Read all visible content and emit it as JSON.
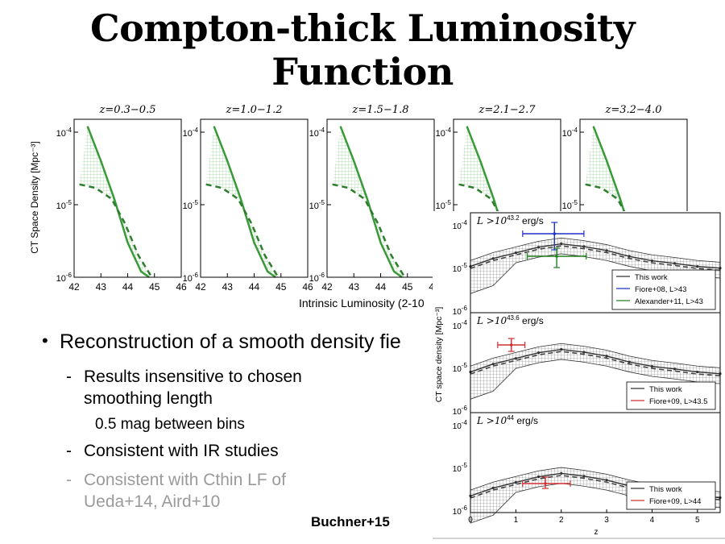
{
  "slide": {
    "title_line1": "Compton-thick Luminosity",
    "title_line2": "Function",
    "bullet_main": "Reconstruction of a smooth density fie",
    "sub1_line1": "Results insensitive to chosen",
    "sub1_line2": "smoothing length",
    "sub1_detail": "0.5 mag between bins",
    "sub2": "Consistent with IR studies",
    "sub3_line1": "Consistent with Cthin LF of",
    "sub3_line2": "Ueda+14, Aird+10",
    "citation": "Buchner+15"
  },
  "chart_data": [
    {
      "type": "line",
      "panels": [
        "z=0.3−0.5",
        "z=1.0−1.2",
        "z=1.5−1.8",
        "z=2.1−2.7",
        "z=3.2−4.0"
      ],
      "ylabel": "CT Space Density [Mpc⁻³]",
      "xlabel": "Intrinsic Luminosity (2-10",
      "xticks": [
        "42",
        "43",
        "44",
        "45",
        "46"
      ],
      "yticks": [
        "10-4",
        "10-5",
        "10-6"
      ],
      "ylog": true,
      "ylim": [
        1e-06,
        0.00015
      ],
      "xlim": [
        42,
        46
      ],
      "series": [
        {
          "x": [
            42.5,
            43.0,
            43.5,
            44.0,
            44.5,
            44.8
          ],
          "values": [
            0.00012,
            4e-05,
            1.2e-05,
            3e-06,
            1.2e-06,
            1e-06
          ]
        },
        {
          "x": [
            42.2,
            42.8,
            43.4,
            43.9,
            44.4,
            44.9
          ],
          "values": [
            1.9e-05,
            1.7e-05,
            1.2e-05,
            5.5e-06,
            2e-06,
            1e-06
          ]
        }
      ]
    },
    {
      "type": "line",
      "panels": [
        "L > 10^43.2 erg/s",
        "L > 10^43.6 erg/s",
        "L > 10^44 erg/s"
      ],
      "xlabel": "z",
      "ylabel": "CT space density [Mpc⁻³]",
      "xticks": [
        "0",
        "1",
        "2",
        "3",
        "4",
        "5"
      ],
      "yticks": [
        "10-4",
        "10-5",
        "10-6"
      ],
      "xlim": [
        0,
        5.5
      ],
      "ylog": true,
      "legends": [
        [
          "This work",
          "Fiore+08, L>43",
          "Alexander+11, L>43"
        ],
        [
          "This work",
          "Fiore+09, L>43.5"
        ],
        [
          "This work",
          "Fiore+09, L>44"
        ]
      ],
      "series": [
        {
          "name": "This work",
          "x": [
            0,
            0.5,
            1,
            1.5,
            2,
            2.5,
            3,
            3.5,
            4,
            4.5,
            5,
            5.5
          ],
          "values": [
            1.2e-05,
            1.8e-05,
            2.4e-05,
            3.2e-05,
            3.8e-05,
            3.3e-05,
            2.7e-05,
            2e-05,
            1.6e-05,
            1.4e-05,
            1.2e-05,
            1.1e-05
          ]
        },
        {
          "name": "Fiore+08, L>43",
          "x": [
            1.85
          ],
          "values": [
            5.5e-05
          ],
          "xerr": [
            [
              1.15,
              2.5
            ]
          ],
          "yerr": [
            [
              3.7e-05,
              7.2e-05
            ]
          ]
        },
        {
          "name": "Alexander+11, L>43",
          "x": [
            1.9
          ],
          "values": [
            2e-05
          ],
          "xerr": [
            [
              1.25,
              2.55
            ]
          ],
          "yerr": [
            [
              1.05e-05,
              2.5e-05
            ]
          ]
        }
      ]
    }
  ],
  "colors": {
    "fit": "#3a9a3a",
    "hatch": "#8fcf8f",
    "blue": "#2030c8",
    "green": "#208020",
    "red": "#d03030"
  }
}
